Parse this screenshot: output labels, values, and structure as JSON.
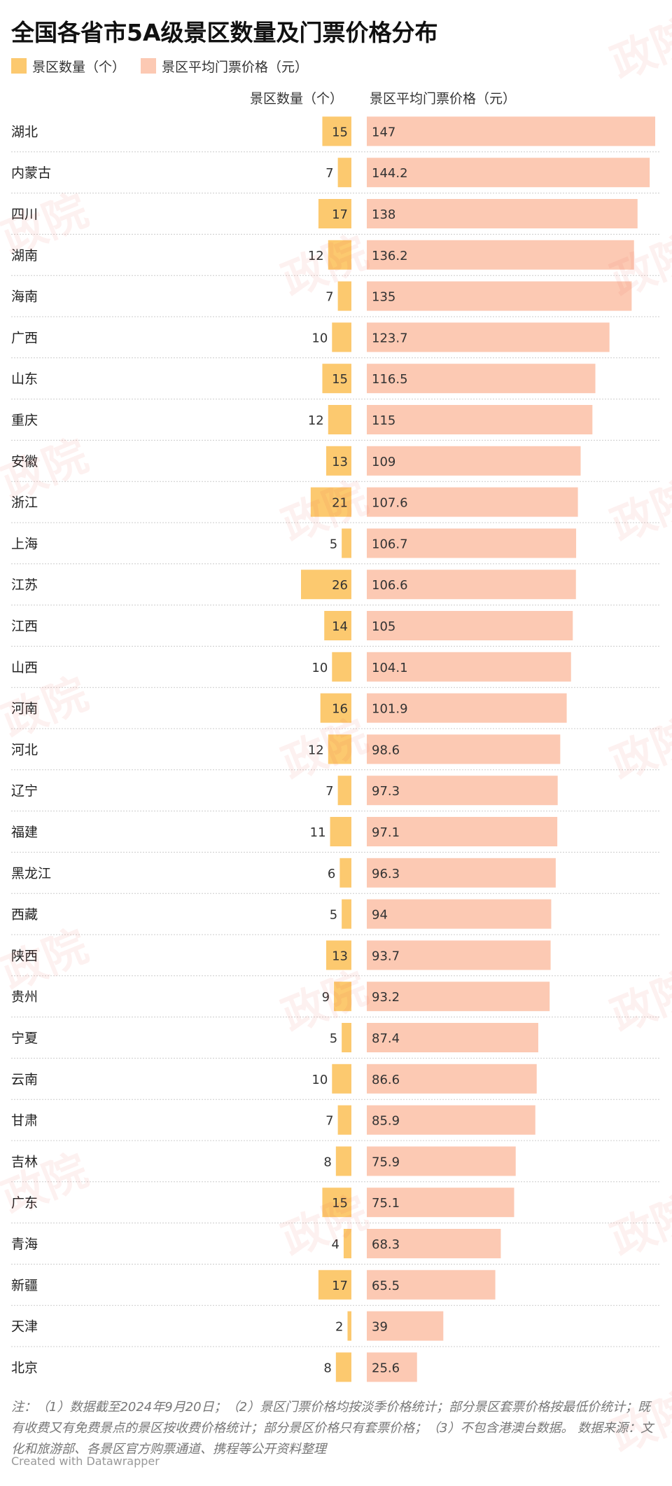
{
  "page": {
    "footnote": "注：（1）数据截至2024年9月20日；（2）景区门票价格均按淡季价格统计；部分景区套票价格按最低价统计；既有收费又有免费景点的景区按收费价格统计；部分景区价格只有套票价格；（3）不包含港澳台数据。 数据来源：文化和旅游部、各景区官方购票通道、携程等公开资料整理",
    "credit": "Created with Datawrapper",
    "watermark": "政院"
  },
  "colors": {
    "count_bar": "#fcc96f",
    "price_bar": "#fcc9b3",
    "divider": "#cccccc"
  },
  "chart_data": {
    "type": "bar",
    "title": "全国各省市5A级景区数量及门票价格分布",
    "legend": [
      "景区数量（个）",
      "景区平均门票价格（元）"
    ],
    "legend_placement": "top-left",
    "column_headers": [
      "景区数量（个）",
      "景区平均门票价格（元）"
    ],
    "categories": [
      "湖北",
      "内蒙古",
      "四川",
      "湖南",
      "海南",
      "广西",
      "山东",
      "重庆",
      "安徽",
      "浙江",
      "上海",
      "江苏",
      "江西",
      "山西",
      "河南",
      "河北",
      "辽宁",
      "福建",
      "黑龙江",
      "西藏",
      "陕西",
      "贵州",
      "宁夏",
      "云南",
      "甘肃",
      "吉林",
      "广东",
      "青海",
      "新疆",
      "天津",
      "北京"
    ],
    "series": [
      {
        "name": "景区数量（个）",
        "values": [
          15,
          7,
          17,
          12,
          7,
          10,
          15,
          12,
          13,
          21,
          5,
          26,
          14,
          10,
          16,
          12,
          7,
          11,
          6,
          5,
          13,
          9,
          5,
          10,
          7,
          8,
          15,
          4,
          17,
          2,
          8
        ]
      },
      {
        "name": "景区平均门票价格（元）",
        "values": [
          147,
          144.2,
          138,
          136.2,
          135,
          123.7,
          116.5,
          115,
          109,
          107.6,
          106.7,
          106.6,
          105,
          104.1,
          101.9,
          98.6,
          97.3,
          97.1,
          96.3,
          94,
          93.7,
          93.2,
          87.4,
          86.6,
          85.9,
          75.9,
          75.1,
          68.3,
          65.5,
          39,
          25.6
        ]
      }
    ],
    "count_range": [
      0,
      26
    ],
    "price_range": [
      0,
      147
    ]
  }
}
